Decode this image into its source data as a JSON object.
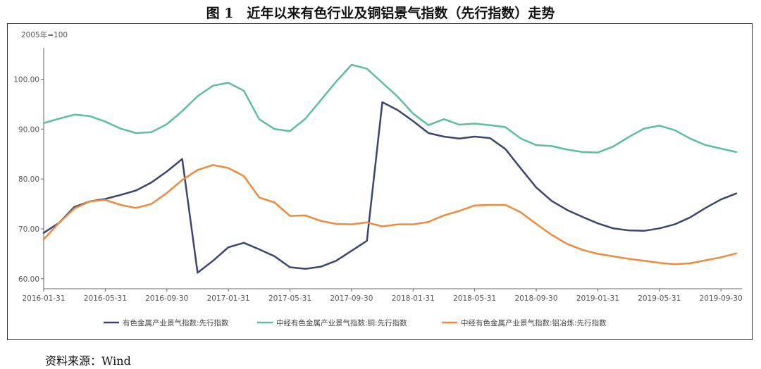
{
  "figure": {
    "title": "图 1　近年以来有色行业及铜铝景气指数（先行指数）走势",
    "source": "资料来源：Wind"
  },
  "chart_data": {
    "type": "line",
    "unit_label": "2005年=100",
    "ylim": [
      58,
      106
    ],
    "y_ticks": [
      "60.00",
      "70.00",
      "80.00",
      "90.00",
      "100.00"
    ],
    "x_tick_labels": [
      "2016-01-31",
      "2016-05-31",
      "2016-09-30",
      "2017-01-31",
      "2017-05-31",
      "2017-09-30",
      "2018-01-31",
      "2018-05-31",
      "2018-09-30",
      "2019-01-31",
      "2019-05-31",
      "2019-09-30"
    ],
    "x": [
      "2016-01-31",
      "2016-02-29",
      "2016-03-31",
      "2016-04-30",
      "2016-05-31",
      "2016-06-30",
      "2016-07-31",
      "2016-08-31",
      "2016-09-30",
      "2016-10-31",
      "2016-11-30",
      "2016-12-31",
      "2017-01-31",
      "2017-02-28",
      "2017-03-31",
      "2017-04-30",
      "2017-05-31",
      "2017-06-30",
      "2017-07-31",
      "2017-08-31",
      "2017-09-30",
      "2017-10-31",
      "2017-11-30",
      "2017-12-31",
      "2018-01-31",
      "2018-02-28",
      "2018-03-31",
      "2018-04-30",
      "2018-05-31",
      "2018-06-30",
      "2018-07-31",
      "2018-08-31",
      "2018-09-30",
      "2018-10-31",
      "2018-11-30",
      "2018-12-31",
      "2019-01-31",
      "2019-02-28",
      "2019-03-31",
      "2019-04-30",
      "2019-05-31",
      "2019-06-30",
      "2019-07-31",
      "2019-08-31",
      "2019-09-30",
      "2019-10-31"
    ],
    "series": [
      {
        "name": "有色金属产业景气指数:先行指数",
        "color": "#3b4670",
        "values": [
          69.2,
          71.2,
          74.4,
          75.5,
          76.0,
          76.8,
          77.7,
          79.3,
          81.5,
          84.0,
          61.2,
          63.6,
          66.3,
          67.2,
          65.9,
          64.5,
          62.3,
          62.0,
          62.4,
          63.6,
          65.6,
          67.6,
          95.4,
          93.8,
          91.6,
          89.2,
          88.5,
          88.1,
          88.5,
          88.2,
          86.0,
          82.1,
          78.3,
          75.6,
          73.8,
          72.4,
          71.1,
          70.1,
          69.7,
          69.6,
          70.1,
          70.9,
          72.3,
          74.2,
          75.9,
          77.1
        ]
      },
      {
        "name": "中经有色金属产业景气指数:铜:先行指数",
        "color": "#5bbf9f",
        "values": [
          91.2,
          92.1,
          92.9,
          92.6,
          91.5,
          90.1,
          89.2,
          89.4,
          91.0,
          93.6,
          96.6,
          98.7,
          99.3,
          97.7,
          92.0,
          90.0,
          89.6,
          92.1,
          95.8,
          99.5,
          102.9,
          102.1,
          99.3,
          96.5,
          93.1,
          90.8,
          92.0,
          90.9,
          91.1,
          90.8,
          90.4,
          88.1,
          86.8,
          86.6,
          85.9,
          85.4,
          85.3,
          86.5,
          88.4,
          90.1,
          90.7,
          89.8,
          88.1,
          86.8,
          86.1,
          85.4
        ]
      },
      {
        "name": "中经有色金属产业景气指数:铝冶炼:先行指数",
        "color": "#ef8a3c",
        "values": [
          67.9,
          71.2,
          74.1,
          75.5,
          75.8,
          74.8,
          74.2,
          75.0,
          77.2,
          79.8,
          81.8,
          82.8,
          82.2,
          80.6,
          76.3,
          75.3,
          72.6,
          72.7,
          71.6,
          71.0,
          70.9,
          71.3,
          70.5,
          70.9,
          70.9,
          71.4,
          72.7,
          73.6,
          74.7,
          74.8,
          74.8,
          73.3,
          71.0,
          68.8,
          67.0,
          65.8,
          65.0,
          64.5,
          64.0,
          63.6,
          63.2,
          62.9,
          63.1,
          63.7,
          64.3,
          65.1
        ]
      }
    ],
    "grid": false,
    "legend_position": "bottom"
  }
}
